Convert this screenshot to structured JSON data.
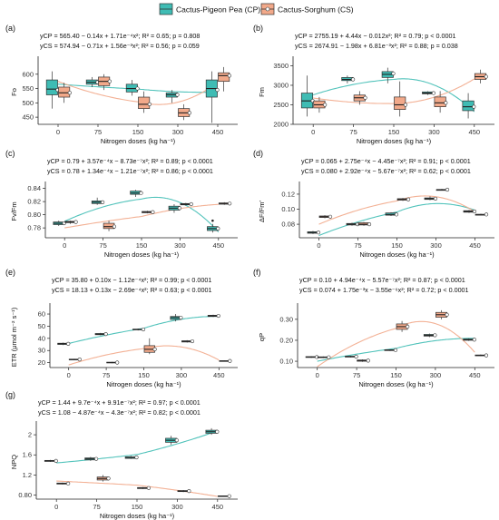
{
  "legend": [
    {
      "name": "Cactus-Pigeon Pea (CP)",
      "color": "#3fbcb4"
    },
    {
      "name": "Cactus-Sorghum (CS)",
      "color": "#f2a98a"
    }
  ],
  "xlabel": "Nitrogen doses (kg ha⁻¹)",
  "chart_data": [
    {
      "panel": "(a)",
      "type": "box",
      "ylabel": "Fo",
      "categories": [
        "0",
        "75",
        "150",
        "300",
        "450"
      ],
      "ylim": [
        425,
        650
      ],
      "yticks": [
        450,
        500,
        550,
        600
      ],
      "eq_cp": "yCP = 565.40 − 0.14x + 1.71e⁻⁴x²; R² = 0.65; p = 0.808",
      "eq_cs": "yCS = 574.94 − 0.71x + 1.56e⁻³x²; R² = 0.56; p = 0.059",
      "fit_cp": [
        565.4,
        -0.14,
        0.000171
      ],
      "fit_cs": [
        574.94,
        -0.71,
        0.00156
      ],
      "series": [
        {
          "name": "CP",
          "boxes": [
            [
              480,
              528,
              548,
              580,
              610
            ],
            [
              555,
              565,
              572,
              580,
              590
            ],
            [
              525,
              538,
              550,
              565,
              580
            ],
            [
              500,
              520,
              528,
              535,
              545
            ],
            [
              430,
              520,
              550,
              580,
              610
            ]
          ],
          "means": [
            545,
            572,
            550,
            528,
            545
          ]
        },
        {
          "name": "CS",
          "boxes": [
            [
              500,
              520,
              535,
              555,
              570
            ],
            [
              545,
              560,
              575,
              590,
              600
            ],
            [
              465,
              480,
              495,
              520,
              540
            ],
            [
              440,
              452,
              465,
              480,
              495
            ],
            [
              540,
              575,
              595,
              605,
              625
            ]
          ],
          "means": [
            535,
            575,
            495,
            465,
            595
          ]
        }
      ]
    },
    {
      "panel": "(b)",
      "type": "box",
      "ylabel": "Fm",
      "categories": [
        "0",
        "75",
        "150",
        "300",
        "450"
      ],
      "ylim": [
        2000,
        3650
      ],
      "yticks": [
        2000,
        2500,
        3000,
        3500
      ],
      "eq_cp": "yCP = 2755.19 + 4.44x − 0.012x²; R² = 0.79; p < 0.0001",
      "eq_cs": "yCS = 2674.91 − 1.98x + 6.81e⁻³x²; R² = 0.88; p = 0.038",
      "fit_cp": [
        2755.19,
        4.44,
        -0.012
      ],
      "fit_cs": [
        2674.91,
        -1.98,
        0.00681
      ],
      "series": [
        {
          "name": "CP",
          "boxes": [
            [
              2200,
              2420,
              2600,
              2800,
              3250
            ],
            [
              3050,
              3120,
              3150,
              3200,
              3250
            ],
            [
              3050,
              3200,
              3280,
              3350,
              3450
            ],
            [
              2750,
              2780,
              2800,
              2830,
              2850
            ],
            [
              2150,
              2350,
              2450,
              2600,
              2800
            ]
          ],
          "means": [
            2600,
            3150,
            3300,
            2800,
            2450
          ]
        },
        {
          "name": "CS",
          "boxes": [
            [
              2300,
              2420,
              2500,
              2600,
              2700
            ],
            [
              2500,
              2600,
              2680,
              2750,
              2850
            ],
            [
              2200,
              2380,
              2500,
              2700,
              3100
            ],
            [
              2300,
              2450,
              2550,
              2700,
              2850
            ],
            [
              3050,
              3150,
              3220,
              3300,
              3400
            ]
          ],
          "means": [
            2500,
            2680,
            2500,
            2550,
            3220
          ]
        }
      ]
    },
    {
      "panel": "(c)",
      "type": "box",
      "ylabel": "Fv/Fm",
      "categories": [
        "0",
        "75",
        "150",
        "300",
        "450"
      ],
      "ylim": [
        0.765,
        0.845
      ],
      "yticks": [
        0.78,
        0.8,
        0.82,
        0.84
      ],
      "eq_cp": "yCP = 0.79 + 3.57e⁻⁴x − 8.73e⁻⁷x²; R² = 0.89; p < 0.0001",
      "eq_cs": "yCS = 0.78 + 1.34e⁻⁴x − 1.21e⁻⁷x²; R² = 0.86; p < 0.0001",
      "fit_cp": [
        0.79,
        0.000357,
        -8.73e-07
      ],
      "fit_cs": [
        0.78,
        0.000134,
        -1.21e-07
      ],
      "series": [
        {
          "name": "CP",
          "boxes": [
            [
              0.783,
              0.785,
              0.787,
              0.789,
              0.791
            ],
            [
              0.815,
              0.817,
              0.819,
              0.821,
              0.826
            ],
            [
              0.827,
              0.831,
              0.833,
              0.836,
              0.838
            ],
            [
              0.803,
              0.807,
              0.81,
              0.813,
              0.816
            ],
            [
              0.773,
              0.776,
              0.779,
              0.782,
              0.786
            ]
          ],
          "means": [
            0.787,
            0.819,
            0.833,
            0.81,
            0.779
          ],
          "outliers": [
            [
              4,
              0.791
            ]
          ]
        },
        {
          "name": "CS",
          "boxes": [
            [
              0.786,
              0.788,
              0.789,
              0.79,
              0.791
            ],
            [
              0.775,
              0.779,
              0.782,
              0.787,
              0.791
            ],
            [
              0.802,
              0.803,
              0.804,
              0.805,
              0.806
            ],
            [
              0.814,
              0.815,
              0.816,
              0.817,
              0.818
            ],
            [
              0.815,
              0.816,
              0.817,
              0.818,
              0.819
            ]
          ],
          "means": [
            0.789,
            0.782,
            0.804,
            0.816,
            0.817
          ]
        }
      ]
    },
    {
      "panel": "(d)",
      "type": "box",
      "ylabel": "ΔF/Fm′",
      "categories": [
        "0",
        "75",
        "150",
        "300",
        "450"
      ],
      "ylim": [
        0.062,
        0.132
      ],
      "yticks": [
        0.08,
        0.1,
        0.12
      ],
      "eq_cp": "yCP = 0.065 + 2.75e⁻⁴x − 4.45e⁻⁷x²; R² = 0.91; p < 0.0001",
      "eq_cs": "yCS = 0.080 + 2.92e⁻⁴x − 5.67e⁻⁷x²; R² = 0.62; p < 0.0001",
      "fit_cp": [
        0.065,
        0.000275,
        -4.45e-07
      ],
      "fit_cs": [
        0.08,
        0.000292,
        -5.67e-07
      ],
      "series": [
        {
          "name": "CP",
          "boxes": [
            [
              0.067,
              0.068,
              0.069,
              0.07,
              0.071
            ],
            [
              0.078,
              0.079,
              0.08,
              0.081,
              0.082
            ],
            [
              0.091,
              0.092,
              0.093,
              0.095,
              0.096
            ],
            [
              0.112,
              0.113,
              0.114,
              0.115,
              0.117
            ],
            [
              0.095,
              0.096,
              0.097,
              0.098,
              0.099
            ]
          ],
          "means": [
            0.069,
            0.08,
            0.093,
            0.114,
            0.097
          ]
        },
        {
          "name": "CS",
          "boxes": [
            [
              0.088,
              0.089,
              0.09,
              0.091,
              0.092
            ],
            [
              0.078,
              0.079,
              0.08,
              0.082,
              0.083
            ],
            [
              0.111,
              0.112,
              0.113,
              0.114,
              0.115
            ],
            [
              0.125,
              0.125,
              0.126,
              0.126,
              0.127
            ],
            [
              0.092,
              0.092,
              0.093,
              0.093,
              0.094
            ]
          ],
          "means": [
            0.09,
            0.08,
            0.113,
            0.126,
            0.093
          ]
        }
      ]
    },
    {
      "panel": "(e)",
      "type": "box",
      "ylabel": "ETR (μmol m⁻² s⁻¹)",
      "categories": [
        "0",
        "75",
        "150",
        "300",
        "450"
      ],
      "ylim": [
        16,
        66
      ],
      "yticks": [
        20,
        30,
        40,
        50,
        60
      ],
      "eq_cp": "yCP = 35.80 + 0.10x − 1.12e⁻⁴x²; R² = 0.99; p < 0.0001",
      "eq_cs": "yCS = 18.13 + 0.13x − 2.69e⁻⁴x²; R² = 0.63; p < 0.0001",
      "fit_cp": [
        35.8,
        0.1,
        -0.000112
      ],
      "fit_cs": [
        18.13,
        0.13,
        -0.000269
      ],
      "series": [
        {
          "name": "CP",
          "boxes": [
            [
              34.5,
              35,
              35.5,
              36,
              36.5
            ],
            [
              42.5,
              43,
              43.5,
              44,
              44.5
            ],
            [
              46.5,
              47,
              47.3,
              47.6,
              48
            ],
            [
              54,
              55.5,
              57,
              58,
              60
            ],
            [
              57.5,
              58,
              58.5,
              59,
              59.5
            ]
          ],
          "means": [
            35.5,
            43.5,
            47.3,
            57,
            58.5
          ]
        },
        {
          "name": "CS",
          "boxes": [
            [
              22,
              22.3,
              22.6,
              22.9,
              23.2
            ],
            [
              19.5,
              19.8,
              20.1,
              20.4,
              20.7
            ],
            [
              27,
              28.5,
              31,
              34,
              40
            ],
            [
              36.5,
              37,
              37.6,
              38,
              38.5
            ],
            [
              21,
              21.2,
              21.4,
              21.6,
              21.8
            ]
          ],
          "means": [
            22.6,
            20.1,
            31,
            37.6,
            21.4
          ]
        }
      ]
    },
    {
      "panel": "(f)",
      "type": "box",
      "ylabel": "qP",
      "categories": [
        "0",
        "75",
        "150",
        "300",
        "450"
      ],
      "ylim": [
        0.07,
        0.36
      ],
      "yticks": [
        0.1,
        0.2,
        0.3
      ],
      "eq_cp": "yCP = 0.10 + 4.94e⁻⁴x − 5.57e⁻⁷x²; R² = 0.87; p < 0.0001",
      "eq_cs": "yCS = 0.074 + 1.75e⁻³x − 3.55e⁻⁶x²; R² = 0.72; p < 0.0001",
      "fit_cp": [
        0.1,
        0.000494,
        -5.57e-07
      ],
      "fit_cs": [
        0.074,
        0.00175,
        -3.55e-06
      ],
      "series": [
        {
          "name": "CP",
          "boxes": [
            [
              0.116,
              0.118,
              0.12,
              0.122,
              0.124
            ],
            [
              0.118,
              0.12,
              0.122,
              0.124,
              0.126
            ],
            [
              0.149,
              0.151,
              0.153,
              0.155,
              0.157
            ],
            [
              0.215,
              0.22,
              0.224,
              0.228,
              0.232
            ],
            [
              0.197,
              0.2,
              0.203,
              0.206,
              0.209
            ]
          ],
          "means": [
            0.12,
            0.122,
            0.153,
            0.224,
            0.203
          ]
        },
        {
          "name": "CS",
          "boxes": [
            [
              0.115,
              0.117,
              0.119,
              0.121,
              0.123
            ],
            [
              0.097,
              0.1,
              0.103,
              0.106,
              0.109
            ],
            [
              0.24,
              0.252,
              0.265,
              0.278,
              0.292
            ],
            [
              0.3,
              0.31,
              0.322,
              0.333,
              0.343
            ],
            [
              0.124,
              0.126,
              0.128,
              0.13,
              0.132
            ]
          ],
          "means": [
            0.119,
            0.103,
            0.265,
            0.322,
            0.128
          ]
        }
      ]
    },
    {
      "panel": "(g)",
      "type": "box",
      "ylabel": "NPQ",
      "categories": [
        "0",
        "75",
        "150",
        "300",
        "450"
      ],
      "ylim": [
        0.72,
        2.2
      ],
      "yticks": [
        0.8,
        1.2,
        1.6,
        2.0
      ],
      "eq_cp": "yCP = 1.44 + 9.7e⁻⁴x + 9.91e⁻⁷x²; R² = 0.97; p < 0.0001",
      "eq_cs": "yCS = 1.08 − 4.87e⁻⁴x − 4.3e⁻⁷x²; R² = 0.82; p < 0.0001",
      "fit_cp": [
        1.44,
        0.00097,
        9.91e-07
      ],
      "fit_cs": [
        1.08,
        -0.000487,
        -4.3e-07
      ],
      "series": [
        {
          "name": "CP",
          "boxes": [
            [
              1.46,
              1.47,
              1.48,
              1.49,
              1.5
            ],
            [
              1.48,
              1.5,
              1.52,
              1.54,
              1.56
            ],
            [
              1.52,
              1.53,
              1.55,
              1.56,
              1.58
            ],
            [
              1.8,
              1.85,
              1.89,
              1.93,
              1.98
            ],
            [
              2.0,
              2.03,
              2.06,
              2.09,
              2.13
            ]
          ],
          "means": [
            1.48,
            1.52,
            1.55,
            1.89,
            2.06
          ]
        },
        {
          "name": "CS",
          "boxes": [
            [
              1.01,
              1.02,
              1.03,
              1.04,
              1.05
            ],
            [
              1.07,
              1.1,
              1.13,
              1.16,
              1.2
            ],
            [
              0.92,
              0.93,
              0.94,
              0.95,
              0.96
            ],
            [
              0.86,
              0.87,
              0.88,
              0.89,
              0.9
            ],
            [
              0.77,
              0.775,
              0.78,
              0.785,
              0.79
            ]
          ],
          "means": [
            1.03,
            1.13,
            0.94,
            0.88,
            0.78
          ]
        }
      ]
    }
  ]
}
